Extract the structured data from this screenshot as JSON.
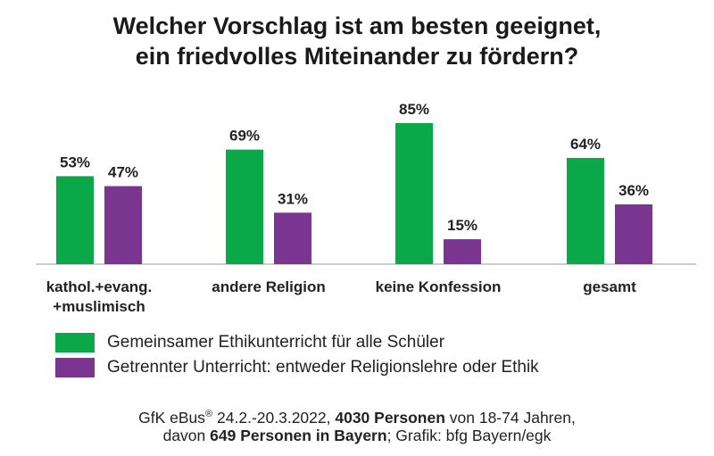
{
  "title_line1": "Welcher Vorschlag ist am besten geeignet,",
  "title_line2": "ein friedvolles Miteinander zu fördern?",
  "colors": {
    "series1": "#0ba84a",
    "series2": "#7a3590",
    "baseline": "#bbbbbb",
    "text": "#222222"
  },
  "chart_data": {
    "type": "bar",
    "title": "Welcher Vorschlag ist am besten geeignet, ein friedvolles Miteinander zu fördern?",
    "categories": [
      [
        "kathol.+evang.",
        "+muslimisch"
      ],
      [
        "andere Religion"
      ],
      [
        "keine Konfession"
      ],
      [
        "gesamt"
      ]
    ],
    "series": [
      {
        "name": "Gemeinsamer Ethikunterricht für alle Schüler",
        "values": [
          53,
          69,
          85,
          64
        ],
        "labels": [
          "53%",
          "69%",
          "85%",
          "64%"
        ]
      },
      {
        "name": "Getrennter Unterricht: entweder Religionslehre oder Ethik",
        "values": [
          47,
          31,
          15,
          36
        ],
        "labels": [
          "47%",
          "31%",
          "15%",
          "36%"
        ]
      }
    ],
    "ylim": [
      0,
      100
    ],
    "grid": false,
    "legend_position": "bottom-left"
  },
  "source": {
    "line1_a": "GfK eBus",
    "line1_reg": "®",
    "line1_b": " 24.2.-20.3.2022, ",
    "line1_bold": "4030 Personen",
    "line1_c": " von 18-74 Jahren,",
    "line2_a": "davon ",
    "line2_bold": "649 Personen in Bayern",
    "line2_b": "; Grafik: bfg Bayern/egk"
  }
}
